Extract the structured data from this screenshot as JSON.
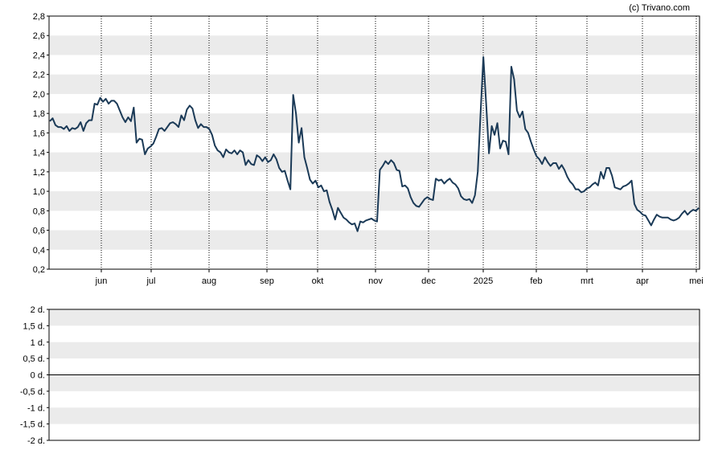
{
  "credit": "(c) Trivano.com",
  "colors": {
    "line": "#1b3a57",
    "band": "#ebebeb",
    "grid": "#000000",
    "zero": "#000000"
  },
  "chart_data": [
    {
      "type": "line",
      "x_tick_labels": [
        "jun",
        "jul",
        "aug",
        "sep",
        "okt",
        "nov",
        "dec",
        "2025",
        "feb",
        "mrt",
        "apr",
        "mei"
      ],
      "y_tick_labels": [
        "0,2",
        "0,4",
        "0,6",
        "0,8",
        "1,0",
        "1,2",
        "1,4",
        "1,6",
        "1,8",
        "2,0",
        "2,2",
        "2,4",
        "2,6",
        "2,8"
      ],
      "ylim": [
        0.2,
        2.8
      ],
      "grid": "vertical dotted at month ticks, alternating horizontal bands",
      "series": [
        {
          "values": [
            1.72,
            1.75,
            1.68,
            1.66,
            1.66,
            1.64,
            1.67,
            1.62,
            1.65,
            1.64,
            1.66,
            1.71,
            1.62,
            1.7,
            1.73,
            1.73,
            1.9,
            1.89,
            1.96,
            1.92,
            1.95,
            1.9,
            1.93,
            1.93,
            1.9,
            1.83,
            1.76,
            1.71,
            1.76,
            1.72,
            1.86,
            1.5,
            1.54,
            1.53,
            1.38,
            1.44,
            1.46,
            1.49,
            1.56,
            1.64,
            1.65,
            1.62,
            1.66,
            1.7,
            1.71,
            1.69,
            1.66,
            1.78,
            1.73,
            1.84,
            1.88,
            1.85,
            1.73,
            1.65,
            1.69,
            1.66,
            1.66,
            1.64,
            1.58,
            1.47,
            1.42,
            1.4,
            1.35,
            1.43,
            1.4,
            1.39,
            1.42,
            1.38,
            1.42,
            1.4,
            1.27,
            1.32,
            1.28,
            1.27,
            1.37,
            1.35,
            1.31,
            1.35,
            1.3,
            1.32,
            1.38,
            1.33,
            1.24,
            1.2,
            1.21,
            1.11,
            1.02,
            1.99,
            1.8,
            1.5,
            1.65,
            1.35,
            1.24,
            1.12,
            1.08,
            1.11,
            1.04,
            1.06,
            1.0,
            1.01,
            0.89,
            0.81,
            0.71,
            0.83,
            0.78,
            0.73,
            0.71,
            0.68,
            0.66,
            0.67,
            0.59,
            0.69,
            0.68,
            0.7,
            0.71,
            0.72,
            0.7,
            0.69,
            1.22,
            1.26,
            1.31,
            1.28,
            1.32,
            1.29,
            1.22,
            1.21,
            1.05,
            1.06,
            1.03,
            0.94,
            0.88,
            0.85,
            0.84,
            0.88,
            0.92,
            0.94,
            0.92,
            0.91,
            1.13,
            1.11,
            1.12,
            1.08,
            1.11,
            1.13,
            1.09,
            1.07,
            1.03,
            0.95,
            0.92,
            0.91,
            0.92,
            0.88,
            0.96,
            1.2,
            1.8,
            2.38,
            1.9,
            1.39,
            1.67,
            1.58,
            1.7,
            1.44,
            1.52,
            1.51,
            1.38,
            2.28,
            2.15,
            1.83,
            1.76,
            1.82,
            1.64,
            1.6,
            1.51,
            1.43,
            1.36,
            1.33,
            1.28,
            1.35,
            1.3,
            1.26,
            1.29,
            1.29,
            1.23,
            1.27,
            1.22,
            1.15,
            1.1,
            1.07,
            1.02,
            1.02,
            0.99,
            1.0,
            1.03,
            1.04,
            1.07,
            1.09,
            1.06,
            1.2,
            1.13,
            1.24,
            1.24,
            1.16,
            1.04,
            1.03,
            1.02,
            1.05,
            1.06,
            1.08,
            1.11,
            0.87,
            0.81,
            0.79,
            0.76,
            0.75,
            0.7,
            0.65,
            0.71,
            0.76,
            0.74,
            0.73,
            0.73,
            0.73,
            0.71,
            0.7,
            0.71,
            0.73,
            0.77,
            0.8,
            0.76,
            0.79,
            0.81,
            0.8,
            0.83
          ]
        }
      ]
    },
    {
      "type": "line",
      "y_tick_labels": [
        "2 d.",
        "1,5 d.",
        "1 d.",
        "0,5 d.",
        "0 d.",
        "-0,5 d.",
        "-1 d.",
        "-1,5 d.",
        "-2 d."
      ],
      "ylim": [
        -2,
        2
      ],
      "series": []
    }
  ]
}
